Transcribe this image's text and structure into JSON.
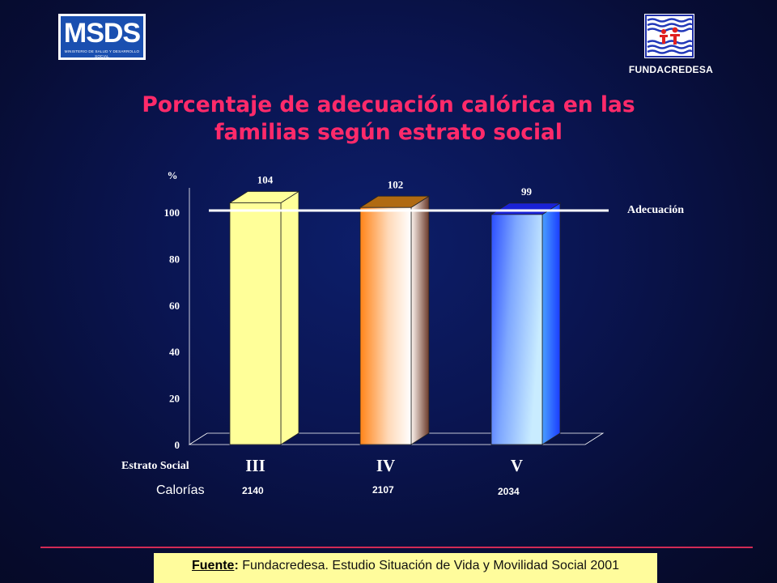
{
  "logos": {
    "msds_word": "MSDS",
    "msds_sub": "MINISTERIO DE SALUD Y DESARROLLO SOCIAL",
    "funda_label": "FUNDACREDESA"
  },
  "title_line1": "Porcentaje de adecuación calórica en las",
  "title_line2": "familias según estrato social",
  "chart_data": {
    "type": "bar",
    "ylabel": "%",
    "ylim": [
      0,
      110
    ],
    "yticks": [
      0,
      20,
      40,
      60,
      80,
      100
    ],
    "categories": [
      "III",
      "IV",
      "V"
    ],
    "values": [
      104,
      102,
      99
    ],
    "value_labels": [
      "104",
      "102",
      "99"
    ],
    "category_axis_label": "Estrato Social",
    "calories_label": "Calorías",
    "calories": [
      "2140",
      "2107",
      "2034"
    ],
    "reference_line": {
      "value": 100,
      "label": "Adecuación"
    },
    "colors": {
      "bar_III_front": "#ffff99",
      "bar_III_side": "#ffff99",
      "bar_IV_top": "#b06a12",
      "bar_IV_front": "#ff8c22",
      "bar_V_top": "#1a22d6",
      "bar_V_front": "#1e4bff",
      "reference_line": "#ffffff"
    }
  },
  "source": {
    "label": "Fuente",
    "text": " Fundacredesa. Estudio Situación de Vida y Movilidad Social 2001"
  }
}
